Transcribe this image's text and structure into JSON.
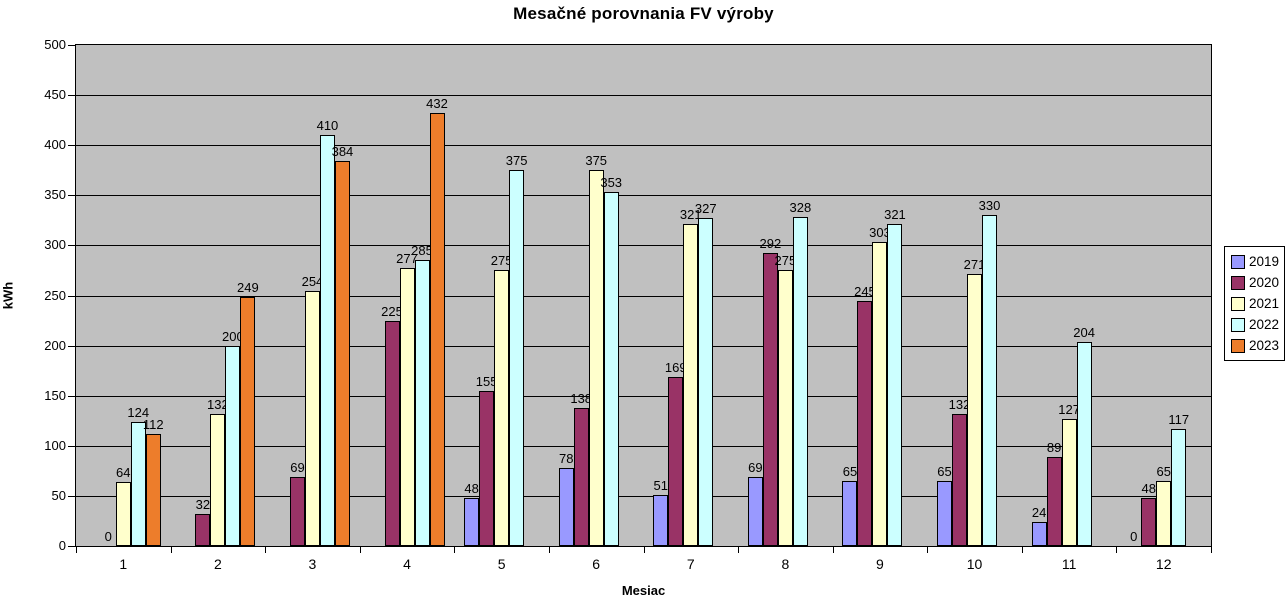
{
  "chart_data": {
    "type": "bar",
    "title": "Mesačné porovnania FV výroby",
    "xlabel": "Mesiac",
    "ylabel": "kWh",
    "ylim": [
      0,
      500
    ],
    "ytick_step": 50,
    "yticks": [
      0,
      50,
      100,
      150,
      200,
      250,
      300,
      350,
      400,
      450,
      500
    ],
    "categories": [
      "1",
      "2",
      "3",
      "4",
      "5",
      "6",
      "7",
      "8",
      "9",
      "10",
      "11",
      "12"
    ],
    "grid": true,
    "data_labels": true,
    "plot_background": "#C0C0C0",
    "gridline_color": "#000000",
    "legend_position": "right",
    "series": [
      {
        "name": "2019",
        "color": "#9999FF",
        "values": [
          null,
          null,
          null,
          null,
          48,
          78,
          51,
          69,
          65,
          65,
          24,
          0
        ]
      },
      {
        "name": "2020",
        "color": "#993366",
        "values": [
          0,
          32,
          69,
          225,
          155,
          138,
          169,
          292,
          245,
          132,
          89,
          48
        ]
      },
      {
        "name": "2021",
        "color": "#FFFFCC",
        "values": [
          64,
          132,
          254,
          277,
          275,
          375,
          321,
          275,
          303,
          271,
          127,
          65
        ]
      },
      {
        "name": "2022",
        "color": "#CCFFFF",
        "values": [
          124,
          200,
          410,
          285,
          375,
          353,
          327,
          328,
          321,
          330,
          204,
          117
        ]
      },
      {
        "name": "2023",
        "color": "#ED7D2B",
        "values": [
          112,
          249,
          384,
          432,
          null,
          null,
          null,
          null,
          null,
          null,
          null,
          null
        ]
      }
    ]
  }
}
